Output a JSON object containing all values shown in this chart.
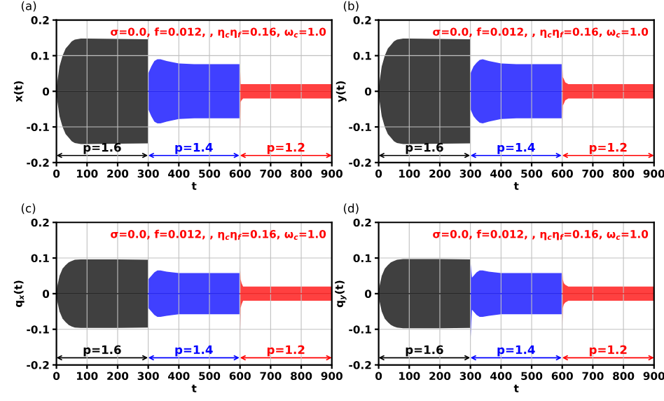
{
  "chart_data": [
    {
      "type": "line",
      "xlabel": "t",
      "ylabel": "x(t)",
      "xlim": [
        0,
        900
      ],
      "ylim": [
        -0.2,
        0.2
      ],
      "xticks": [
        0,
        100,
        200,
        300,
        400,
        500,
        600,
        700,
        800,
        900
      ],
      "yticks": [
        -0.2,
        -0.1,
        0,
        0.1,
        0.2
      ],
      "grid": true,
      "annotations": [
        "(a)",
        "σ=0.0, f=0.012, , η$_{c}$η$_{f}$=0.16, ω$_{c}$=1.0",
        "p=1.6",
        "p=1.4",
        "p=1.2"
      ],
      "series": [
        {
          "color": "#000000",
          "x": [
            0,
            5,
            10,
            20,
            30,
            40,
            50,
            60,
            80,
            100,
            200,
            299
          ],
          "values": [
            0,
            0,
            0,
            0,
            0,
            0,
            0,
            0,
            0,
            0,
            0,
            0
          ],
          "upper": [
            0.01,
            0.04,
            0.07,
            0.1,
            0.12,
            0.13,
            0.14,
            0.145,
            0.148,
            0.148,
            0.147,
            0.146
          ],
          "lower": [
            -0.01,
            -0.04,
            -0.07,
            -0.1,
            -0.12,
            -0.13,
            -0.14,
            -0.145,
            -0.148,
            -0.148,
            -0.147,
            -0.146
          ]
        },
        {
          "color": "#0000ff",
          "x": [
            300,
            305,
            310,
            320,
            330,
            340,
            360,
            400,
            450,
            500,
            598
          ],
          "values": [
            0,
            0,
            0,
            0,
            0,
            0,
            0,
            0,
            0,
            0,
            0
          ],
          "upper": [
            0.05,
            0.06,
            0.07,
            0.085,
            0.09,
            0.09,
            0.085,
            0.078,
            0.076,
            0.076,
            0.076
          ],
          "lower": [
            -0.05,
            -0.06,
            -0.07,
            -0.085,
            -0.09,
            -0.09,
            -0.085,
            -0.078,
            -0.076,
            -0.076,
            -0.076
          ]
        },
        {
          "color": "#ff0000",
          "x": [
            600,
            602,
            605,
            610,
            620,
            700,
            800,
            900
          ],
          "values": [
            0,
            0,
            0,
            0,
            0,
            0,
            0,
            0
          ],
          "upper": [
            0.075,
            0.02,
            0.02,
            0.02,
            0.02,
            0.02,
            0.02,
            0.02
          ],
          "lower": [
            -0.145,
            -0.03,
            -0.025,
            -0.02,
            -0.02,
            -0.02,
            -0.02,
            -0.02
          ]
        }
      ]
    },
    {
      "type": "line",
      "xlabel": "t",
      "ylabel": "y(t)",
      "xlim": [
        0,
        900
      ],
      "ylim": [
        -0.2,
        0.2
      ],
      "xticks": [
        0,
        100,
        200,
        300,
        400,
        500,
        600,
        700,
        800,
        900
      ],
      "yticks": [
        -0.2,
        -0.1,
        0,
        0.1,
        0.2
      ],
      "grid": true,
      "annotations": [
        "(b)",
        "σ=0.0, f=0.012, , η$_{c}$η$_{f}$=0.16, ω$_{c}$=1.0",
        "p=1.6",
        "p=1.4",
        "p=1.2"
      ],
      "series": [
        {
          "color": "#000000",
          "x": [
            0,
            5,
            10,
            20,
            30,
            40,
            50,
            60,
            80,
            100,
            200,
            299
          ],
          "values": [
            0,
            0,
            0,
            0,
            0,
            0,
            0,
            0,
            0,
            0,
            0,
            0
          ],
          "upper": [
            0.01,
            0.04,
            0.07,
            0.1,
            0.12,
            0.13,
            0.14,
            0.145,
            0.148,
            0.148,
            0.147,
            0.146
          ],
          "lower": [
            -0.01,
            -0.04,
            -0.07,
            -0.1,
            -0.12,
            -0.13,
            -0.14,
            -0.145,
            -0.148,
            -0.148,
            -0.147,
            -0.146
          ]
        },
        {
          "color": "#0000ff",
          "x": [
            300,
            305,
            310,
            320,
            330,
            340,
            360,
            400,
            450,
            500,
            598
          ],
          "values": [
            0,
            0,
            0,
            0,
            0,
            0,
            0,
            0,
            0,
            0,
            0
          ],
          "upper": [
            0.05,
            0.06,
            0.07,
            0.08,
            0.088,
            0.09,
            0.085,
            0.078,
            0.076,
            0.076,
            0.076
          ],
          "lower": [
            -0.05,
            -0.06,
            -0.07,
            -0.08,
            -0.088,
            -0.09,
            -0.085,
            -0.078,
            -0.076,
            -0.076,
            -0.076
          ]
        },
        {
          "color": "#ff0000",
          "x": [
            600,
            602,
            605,
            610,
            620,
            700,
            800,
            900
          ],
          "values": [
            0,
            0,
            0,
            0,
            0,
            0,
            0,
            0
          ],
          "upper": [
            0.075,
            0.04,
            0.035,
            0.025,
            0.02,
            0.02,
            0.02,
            0.02
          ],
          "lower": [
            -0.1,
            -0.04,
            -0.035,
            -0.025,
            -0.02,
            -0.02,
            -0.02,
            -0.02
          ]
        }
      ]
    },
    {
      "type": "line",
      "xlabel": "t",
      "ylabel": "q$_{x}$(t)",
      "xlim": [
        0,
        900
      ],
      "ylim": [
        -0.2,
        0.2
      ],
      "xticks": [
        0,
        100,
        200,
        300,
        400,
        500,
        600,
        700,
        800,
        900
      ],
      "yticks": [
        -0.2,
        -0.1,
        0,
        0.1,
        0.2
      ],
      "grid": true,
      "annotations": [
        "(c)",
        "σ=0.0, f=0.012, , η$_{c}$η$_{f}$=0.16, ω$_{c}$=1.0",
        "p=1.6",
        "p=1.4",
        "p=1.2"
      ],
      "series": [
        {
          "color": "#000000",
          "x": [
            0,
            5,
            10,
            20,
            30,
            40,
            50,
            60,
            80,
            100,
            200,
            299
          ],
          "values": [
            0,
            0,
            0,
            0,
            0,
            0,
            0,
            0,
            0,
            0,
            0,
            0
          ],
          "upper": [
            0.01,
            0.03,
            0.05,
            0.07,
            0.08,
            0.088,
            0.092,
            0.095,
            0.096,
            0.096,
            0.096,
            0.095
          ],
          "lower": [
            -0.01,
            -0.03,
            -0.05,
            -0.07,
            -0.08,
            -0.088,
            -0.092,
            -0.095,
            -0.096,
            -0.096,
            -0.096,
            -0.095
          ]
        },
        {
          "color": "#0000ff",
          "x": [
            300,
            305,
            310,
            320,
            330,
            340,
            360,
            400,
            450,
            500,
            598
          ],
          "values": [
            0,
            0,
            0,
            0,
            0,
            0,
            0,
            0,
            0,
            0,
            0
          ],
          "upper": [
            0.04,
            0.045,
            0.05,
            0.06,
            0.065,
            0.065,
            0.062,
            0.058,
            0.058,
            0.058,
            0.058
          ],
          "lower": [
            -0.04,
            -0.045,
            -0.05,
            -0.06,
            -0.065,
            -0.065,
            -0.062,
            -0.058,
            -0.058,
            -0.058,
            -0.058
          ]
        },
        {
          "color": "#ff0000",
          "x": [
            600,
            602,
            605,
            610,
            620,
            700,
            800,
            900
          ],
          "values": [
            0,
            0,
            0,
            0,
            0,
            0,
            0,
            0
          ],
          "upper": [
            0.08,
            0.04,
            0.03,
            0.02,
            0.02,
            0.02,
            0.02,
            0.02
          ],
          "lower": [
            -0.135,
            -0.04,
            -0.03,
            -0.02,
            -0.02,
            -0.02,
            -0.02,
            -0.02
          ]
        }
      ]
    },
    {
      "type": "line",
      "xlabel": "t",
      "ylabel": "q$_{y}$(t)",
      "xlim": [
        0,
        900
      ],
      "ylim": [
        -0.2,
        0.2
      ],
      "xticks": [
        0,
        100,
        200,
        300,
        400,
        500,
        600,
        700,
        800,
        900
      ],
      "yticks": [
        -0.2,
        -0.1,
        0,
        0.1,
        0.2
      ],
      "grid": true,
      "annotations": [
        "(d)",
        "σ=0.0, f=0.012, , η$_{c}$η$_{f}$=0.16, ω$_{c}$=1.0",
        "p=1.6",
        "p=1.4",
        "p=1.2"
      ],
      "series": [
        {
          "color": "#000000",
          "x": [
            0,
            5,
            10,
            20,
            30,
            40,
            50,
            60,
            80,
            100,
            200,
            299
          ],
          "values": [
            0,
            0,
            0,
            0,
            0,
            0,
            0,
            0,
            0,
            0,
            0,
            0
          ],
          "upper": [
            0.01,
            0.03,
            0.05,
            0.07,
            0.08,
            0.088,
            0.092,
            0.095,
            0.097,
            0.097,
            0.097,
            0.096
          ],
          "lower": [
            -0.01,
            -0.03,
            -0.05,
            -0.07,
            -0.08,
            -0.088,
            -0.092,
            -0.095,
            -0.097,
            -0.097,
            -0.097,
            -0.096
          ]
        },
        {
          "color": "#0000ff",
          "x": [
            300,
            305,
            310,
            320,
            330,
            340,
            360,
            400,
            450,
            500,
            598
          ],
          "values": [
            0,
            0,
            0,
            0,
            0,
            0,
            0,
            0,
            0,
            0,
            0
          ],
          "upper": [
            0.09,
            0.045,
            0.05,
            0.06,
            0.065,
            0.065,
            0.062,
            0.058,
            0.058,
            0.058,
            0.058
          ],
          "lower": [
            -0.135,
            -0.045,
            -0.05,
            -0.06,
            -0.065,
            -0.065,
            -0.062,
            -0.058,
            -0.058,
            -0.058,
            -0.058
          ]
        },
        {
          "color": "#ff0000",
          "x": [
            600,
            602,
            605,
            610,
            620,
            700,
            800,
            900
          ],
          "values": [
            0,
            0,
            0,
            0,
            0,
            0,
            0,
            0
          ],
          "upper": [
            0.07,
            0.04,
            0.03,
            0.025,
            0.02,
            0.02,
            0.02,
            0.02
          ],
          "lower": [
            -0.1,
            -0.04,
            -0.03,
            -0.025,
            -0.02,
            -0.02,
            -0.02,
            -0.02
          ]
        }
      ]
    }
  ]
}
